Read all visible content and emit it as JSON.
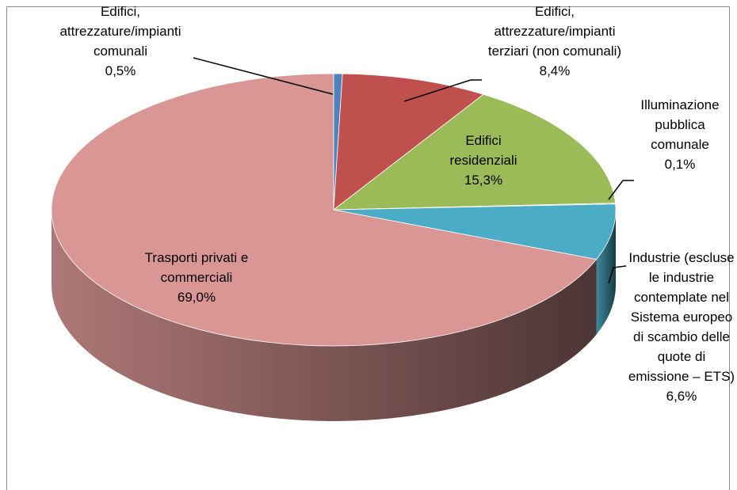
{
  "chart_data": {
    "type": "pie3d",
    "categories": [
      "Edifici, attrezzature/impianti comunali",
      "Edifici, attrezzature/impianti terziari (non comunali)",
      "Edifici residenziali",
      "Illuminazione pubblica comunale",
      "Industrie (escluse le industrie contemplate nel Sistema europeo di scambio delle quote di emissione – ETS)",
      "Trasporti privati e commerciali"
    ],
    "values": [
      0.5,
      8.4,
      15.3,
      0.1,
      6.6,
      69.0
    ],
    "value_labels": [
      "0,5%",
      "8,4%",
      "15,3%",
      "0,1%",
      "6,6%",
      "69,0%"
    ],
    "colors": [
      "#4f81bd",
      "#c0504d",
      "#9bbb59",
      "#8064a2",
      "#4bacc6",
      "#d99694"
    ]
  }
}
